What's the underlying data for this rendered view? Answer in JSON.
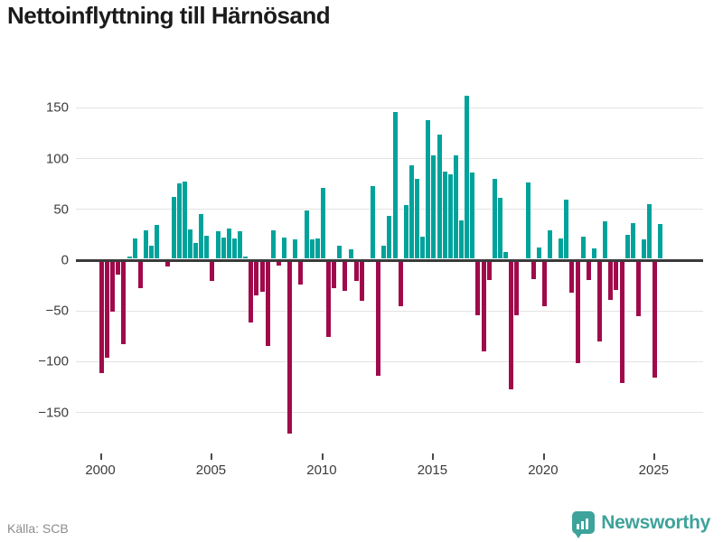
{
  "title": "Nettoinflyttning till Härnösand",
  "source": "Källa: SCB",
  "brand": {
    "name": "Newsworthy",
    "icon": "bar-chart-bubble-icon",
    "color": "#3da39b"
  },
  "colors": {
    "positive": "#00a39b",
    "negative": "#a00a4b",
    "zero_line": "#3a3a3a",
    "gridline": "#e3e3e3"
  },
  "chart_data": {
    "type": "bar",
    "title": "Nettoinflyttning till Härnösand",
    "frequency": "quarterly",
    "x_start": "2000-Q1",
    "x_end": "2025-Q2",
    "x_tick_labels": [
      "2000",
      "2005",
      "2010",
      "2015",
      "2020",
      "2025"
    ],
    "y_ticks": [
      150,
      100,
      50,
      0,
      -50,
      -100,
      -150
    ],
    "ylim": [
      -180,
      172
    ],
    "grid": true,
    "legend": false,
    "series": [
      {
        "name": "Nettoinflyttning",
        "values": [
          -110,
          -95,
          -49,
          -13,
          -81,
          2,
          20,
          -26,
          28,
          13,
          33,
          0,
          -5,
          61,
          74,
          76,
          29,
          16,
          44,
          23,
          -19,
          27,
          21,
          30,
          20,
          27,
          2,
          -60,
          -33,
          -30,
          -83,
          28,
          -4,
          21,
          -170,
          19,
          -23,
          48,
          19,
          20,
          70,
          -74,
          -26,
          13,
          -29,
          9,
          -19,
          -39,
          0,
          72,
          -113,
          13,
          42,
          145,
          -44,
          53,
          92,
          79,
          22,
          137,
          102,
          122,
          86,
          83,
          102,
          38,
          161,
          85,
          -53,
          -89,
          -18,
          79,
          60,
          7,
          -126,
          -53,
          0,
          75,
          -17,
          11,
          -44,
          28,
          0,
          20,
          58,
          -31,
          -100,
          22,
          -18,
          10,
          -79,
          37,
          -38,
          -28,
          -120,
          24,
          35,
          -54,
          19,
          54,
          -114,
          34
        ]
      }
    ]
  }
}
